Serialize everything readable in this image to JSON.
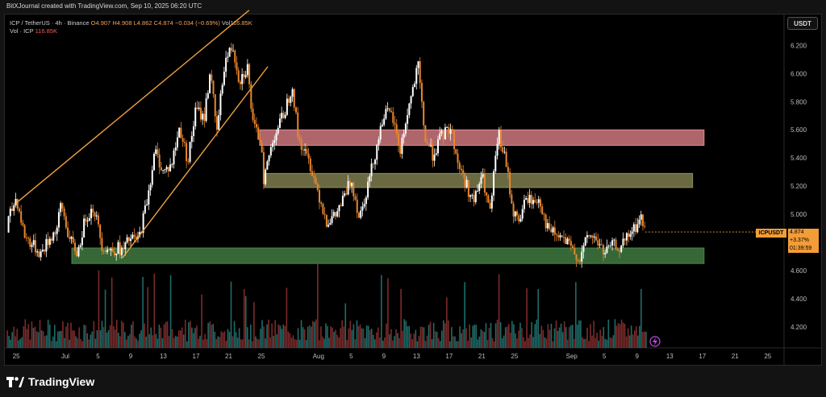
{
  "header": {
    "credit": "BitXJournal created with TradingView.com, Sep 10, 2025 06:20 UTC"
  },
  "legend": {
    "symbol": "ICP / TetherUS · 4h · Binance",
    "open": "O4.907",
    "high": "H4.908",
    "low": "L4.862",
    "close": "C4.874",
    "change": "−0.034 (−0.69%)",
    "vol_label": "Vol",
    "vol_value": "116.85K",
    "vol_line_label": "Vol · ICP",
    "vol_line_value": "116.85K"
  },
  "currency_button": "USDT",
  "price_tag": {
    "symbol": "ICPUSDT",
    "price": "4.874",
    "change": "+3.37%",
    "countdown": "01:39:59"
  },
  "footer": {
    "brand": "TradingView"
  },
  "colors": {
    "up": "#ffffff",
    "down": "#e8862e",
    "trendline": "#f0a040",
    "zone_resistance": "#e8888f",
    "zone_mid": "#8f8c58",
    "zone_support": "#4a8a4a",
    "volume_up": "#1f6b68",
    "volume_down": "#7b2b2b",
    "price_line": "#f29d38"
  },
  "chart_data": {
    "type": "line",
    "series_kind": "candlestick-with-volume",
    "interval": "4h",
    "y_axis": {
      "ticks": [
        "6.200",
        "6.000",
        "5.800",
        "5.600",
        "5.400",
        "5.200",
        "5.000",
        "4.800",
        "4.600",
        "4.400",
        "4.200"
      ],
      "ylim": [
        4.05,
        6.42
      ],
      "side": "right"
    },
    "x_axis": {
      "ticks": [
        "25",
        "Jul",
        "5",
        "9",
        "13",
        "17",
        "21",
        "25",
        "Aug",
        "5",
        "9",
        "13",
        "17",
        "21",
        "25",
        "Sep",
        "5",
        "9",
        "13",
        "17",
        "21",
        "25"
      ]
    },
    "x_days": [
      -6,
      0,
      4,
      8,
      12,
      16,
      20,
      24,
      31,
      35,
      39,
      43,
      47,
      51,
      55,
      62,
      66,
      70,
      74,
      78,
      82,
      86
    ],
    "xlim": [
      -7.4,
      87.6
    ],
    "close_path": [
      [
        -7.0,
        4.95
      ],
      [
        -6.0,
        5.12
      ],
      [
        -5.0,
        4.85
      ],
      [
        -4.0,
        4.78
      ],
      [
        -3.0,
        4.72
      ],
      [
        -2.0,
        4.82
      ],
      [
        -1.0,
        4.9
      ],
      [
        -0.5,
        5.08
      ],
      [
        0.5,
        4.82
      ],
      [
        1.5,
        4.72
      ],
      [
        2.5,
        4.98
      ],
      [
        3.5,
        5.05
      ],
      [
        4.5,
        4.78
      ],
      [
        5.5,
        4.74
      ],
      [
        6.5,
        4.76
      ],
      [
        7.0,
        4.73
      ],
      [
        7.8,
        4.82
      ],
      [
        9.0,
        4.82
      ],
      [
        10.0,
        5.1
      ],
      [
        11.0,
        5.45
      ],
      [
        12.0,
        5.3
      ],
      [
        13.0,
        5.35
      ],
      [
        14.0,
        5.62
      ],
      [
        15.0,
        5.38
      ],
      [
        16.0,
        5.75
      ],
      [
        17.0,
        5.68
      ],
      [
        17.8,
        6.05
      ],
      [
        18.5,
        5.55
      ],
      [
        19.5,
        6.08
      ],
      [
        20.5,
        6.2
      ],
      [
        21.3,
        5.95
      ],
      [
        22.3,
        6.05
      ],
      [
        23.0,
        5.62
      ],
      [
        24.0,
        5.52
      ],
      [
        24.3,
        5.25
      ],
      [
        25.5,
        5.55
      ],
      [
        26.8,
        5.72
      ],
      [
        27.8,
        5.92
      ],
      [
        28.5,
        5.55
      ],
      [
        29.0,
        5.48
      ],
      [
        30.0,
        5.35
      ],
      [
        31.0,
        5.15
      ],
      [
        32.0,
        4.95
      ],
      [
        33.0,
        4.98
      ],
      [
        34.0,
        5.1
      ],
      [
        35.0,
        5.25
      ],
      [
        36.0,
        4.98
      ],
      [
        37.0,
        5.2
      ],
      [
        38.0,
        5.45
      ],
      [
        39.0,
        5.72
      ],
      [
        40.0,
        5.7
      ],
      [
        41.0,
        5.45
      ],
      [
        42.0,
        5.75
      ],
      [
        43.2,
        6.05
      ],
      [
        44.0,
        5.55
      ],
      [
        45.0,
        5.42
      ],
      [
        46.0,
        5.55
      ],
      [
        47.2,
        5.62
      ],
      [
        48.0,
        5.38
      ],
      [
        49.0,
        5.22
      ],
      [
        50.0,
        5.08
      ],
      [
        51.0,
        5.28
      ],
      [
        52.0,
        5.0
      ],
      [
        53.0,
        5.58
      ],
      [
        54.0,
        5.35
      ],
      [
        54.8,
        5.02
      ],
      [
        55.5,
        4.95
      ],
      [
        56.5,
        5.12
      ],
      [
        57.5,
        5.08
      ],
      [
        58.0,
        5.12
      ],
      [
        59.0,
        4.9
      ],
      [
        60.0,
        4.85
      ],
      [
        61.0,
        4.82
      ],
      [
        62.0,
        4.75
      ],
      [
        63.0,
        4.68
      ],
      [
        64.0,
        4.85
      ],
      [
        65.0,
        4.82
      ],
      [
        66.0,
        4.72
      ],
      [
        67.0,
        4.78
      ],
      [
        68.0,
        4.76
      ],
      [
        69.0,
        4.85
      ],
      [
        70.0,
        4.92
      ],
      [
        70.5,
        4.98
      ],
      [
        71.0,
        4.87
      ]
    ],
    "current_price": 4.874,
    "zones": [
      {
        "label": "resistance",
        "x": [
          23.8,
          78.2
        ],
        "y": [
          5.49,
          5.6
        ]
      },
      {
        "label": "mid",
        "x": [
          24.4,
          76.8
        ],
        "y": [
          5.19,
          5.29
        ]
      },
      {
        "label": "support",
        "x": [
          0.8,
          78.2
        ],
        "y": [
          4.65,
          4.76
        ]
      }
    ],
    "trendlines": [
      {
        "from": [
          -6.0,
          5.08
        ],
        "to": [
          22.5,
          6.45
        ]
      },
      {
        "from": [
          7.0,
          4.69
        ],
        "to": [
          24.8,
          6.05
        ]
      }
    ]
  }
}
